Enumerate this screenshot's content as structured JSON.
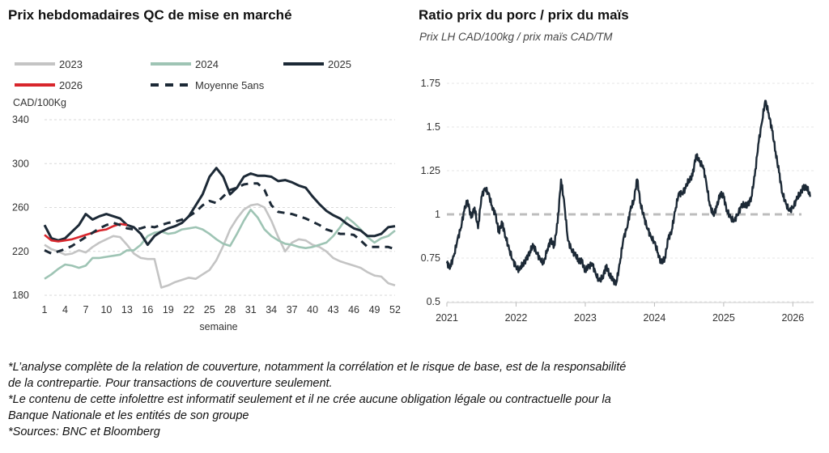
{
  "left": {
    "title": "Prix hebdomadaires QC de mise en marché"
  },
  "right": {
    "title": "Ratio prix du porc / prix du maïs",
    "subtitle": "Prix LH CAD/100kg / prix maïs CAD/TM"
  },
  "footer": [
    "*L’analyse complète de la relation de couverture, notamment la corrélation et le risque de base, est de la responsabilité",
    "de la contrepartie. Pour transactions de couverture seulement.",
    "*Le contenu de cette infolettre est informatif seulement et il ne crée aucune obligation légale ou contractuelle pour la",
    "Banque Nationale et les entités de son groupe",
    "*Sources: BNC et Bloomberg"
  ],
  "chart_data": [
    {
      "type": "line",
      "ylabel": "CAD/100Kg",
      "xlabel": "semaine",
      "ylim": [
        180,
        340
      ],
      "xlim": [
        1,
        52
      ],
      "yticks": [
        180,
        220,
        260,
        300,
        340
      ],
      "xticks": [
        1,
        4,
        7,
        10,
        13,
        16,
        19,
        22,
        25,
        28,
        31,
        34,
        37,
        40,
        43,
        46,
        49,
        52
      ],
      "grid": "horizontal dashed",
      "legend_position": "top",
      "series": [
        {
          "name": "2023",
          "color": "#c4c4c4",
          "dash": "solid",
          "x": [
            1,
            2,
            3,
            4,
            5,
            6,
            7,
            8,
            9,
            10,
            11,
            12,
            13,
            14,
            15,
            16,
            17,
            18,
            19,
            20,
            21,
            22,
            23,
            24,
            25,
            26,
            27,
            28,
            29,
            30,
            31,
            32,
            33,
            34,
            35,
            36,
            37,
            38,
            39,
            40,
            41,
            42,
            43,
            44,
            45,
            46,
            47,
            48,
            49,
            50,
            51,
            52
          ],
          "values": [
            226,
            222,
            220,
            217,
            218,
            221,
            219,
            224,
            228,
            231,
            234,
            233,
            226,
            218,
            214,
            213,
            213,
            187,
            189,
            192,
            194,
            196,
            195,
            199,
            203,
            212,
            225,
            240,
            250,
            258,
            262,
            263,
            260,
            248,
            233,
            220,
            228,
            231,
            230,
            226,
            224,
            220,
            214,
            211,
            209,
            207,
            205,
            201,
            198,
            197,
            191,
            189
          ]
        },
        {
          "name": "2024",
          "color": "#9ec4b4",
          "dash": "solid",
          "x": [
            1,
            2,
            3,
            4,
            5,
            6,
            7,
            8,
            9,
            10,
            11,
            12,
            13,
            14,
            15,
            16,
            17,
            18,
            19,
            20,
            21,
            22,
            23,
            24,
            25,
            26,
            27,
            28,
            29,
            30,
            31,
            32,
            33,
            34,
            35,
            36,
            37,
            38,
            39,
            40,
            41,
            42,
            43,
            44,
            45,
            46,
            47,
            48,
            49,
            50,
            51,
            52
          ],
          "values": [
            195,
            199,
            204,
            208,
            207,
            205,
            207,
            214,
            214,
            215,
            216,
            217,
            221,
            221,
            226,
            234,
            237,
            238,
            236,
            237,
            240,
            241,
            242,
            240,
            236,
            231,
            227,
            225,
            236,
            248,
            258,
            251,
            240,
            234,
            230,
            227,
            226,
            224,
            223,
            224,
            226,
            228,
            234,
            242,
            251,
            246,
            240,
            233,
            228,
            232,
            234,
            239
          ]
        },
        {
          "name": "2025",
          "color": "#1c2936",
          "dash": "solid",
          "x": [
            1,
            2,
            3,
            4,
            5,
            6,
            7,
            8,
            9,
            10,
            11,
            12,
            13,
            14,
            15,
            16,
            17,
            18,
            19,
            20,
            21,
            22,
            23,
            24,
            25,
            26,
            27,
            28,
            29,
            30,
            31,
            32,
            33,
            34,
            35,
            36,
            37,
            38,
            39,
            40,
            41,
            42,
            43,
            44,
            45,
            46,
            47,
            48,
            49,
            50,
            51,
            52
          ],
          "values": [
            244,
            232,
            230,
            232,
            238,
            244,
            254,
            249,
            252,
            254,
            252,
            250,
            244,
            242,
            236,
            226,
            234,
            238,
            241,
            243,
            246,
            252,
            262,
            272,
            288,
            296,
            288,
            272,
            278,
            288,
            291,
            289,
            289,
            288,
            284,
            285,
            283,
            280,
            278,
            270,
            263,
            257,
            253,
            250,
            245,
            241,
            239,
            234,
            234,
            236,
            242,
            243
          ]
        },
        {
          "name": "2026",
          "color": "#d8262c",
          "dash": "solid",
          "x": [
            1,
            2,
            3,
            4,
            5,
            6,
            7,
            8,
            9,
            10,
            11,
            12,
            13
          ],
          "values": [
            235,
            230,
            229,
            230,
            231,
            233,
            235,
            237,
            239,
            240,
            243,
            245,
            244
          ]
        },
        {
          "name": "Moyenne 5ans",
          "color": "#1c2936",
          "dash": "dashed",
          "x": [
            1,
            2,
            3,
            4,
            5,
            6,
            7,
            8,
            9,
            10,
            11,
            12,
            13,
            14,
            15,
            16,
            17,
            18,
            19,
            20,
            21,
            22,
            23,
            24,
            25,
            26,
            27,
            28,
            29,
            30,
            31,
            32,
            33,
            34,
            35,
            36,
            37,
            38,
            39,
            40,
            41,
            42,
            43,
            44,
            45,
            46,
            47,
            48,
            49,
            50,
            51,
            52
          ],
          "values": [
            221,
            218,
            220,
            222,
            225,
            229,
            233,
            237,
            241,
            244,
            246,
            244,
            241,
            240,
            241,
            243,
            242,
            244,
            246,
            247,
            249,
            252,
            256,
            262,
            266,
            264,
            270,
            276,
            278,
            281,
            282,
            282,
            276,
            262,
            256,
            255,
            254,
            252,
            250,
            247,
            244,
            240,
            238,
            236,
            236,
            235,
            230,
            224,
            224,
            224,
            224,
            222
          ]
        }
      ]
    },
    {
      "type": "line",
      "title": "Ratio prix du porc / prix du maïs",
      "subtitle": "Prix LH CAD/100kg / prix maïs CAD/TM",
      "ylim": [
        0.5,
        1.75
      ],
      "yticks": [
        0.5,
        0.75,
        1,
        1.25,
        1.5,
        1.75
      ],
      "ytick_labels": [
        "0.5",
        "0.75",
        "1",
        "1.25",
        "1.5",
        "1.75"
      ],
      "xlim": [
        2021.0,
        2026.3
      ],
      "xticks": [
        2021,
        2022,
        2023,
        2024,
        2025,
        2026
      ],
      "grid": "horizontal dashed",
      "reference_line": {
        "y": 1,
        "color": "#bdbdbd",
        "dash": "dashed"
      },
      "series": [
        {
          "color": "#1c2936",
          "x": [
            2021.0,
            2021.05,
            2021.1,
            2021.15,
            2021.2,
            2021.25,
            2021.3,
            2021.35,
            2021.4,
            2021.45,
            2021.5,
            2021.55,
            2021.6,
            2021.65,
            2021.7,
            2021.75,
            2021.8,
            2021.85,
            2021.9,
            2021.95,
            2022.0,
            2022.05,
            2022.1,
            2022.15,
            2022.2,
            2022.25,
            2022.3,
            2022.35,
            2022.4,
            2022.45,
            2022.5,
            2022.55,
            2022.6,
            2022.65,
            2022.7,
            2022.75,
            2022.8,
            2022.85,
            2022.9,
            2022.95,
            2023.0,
            2023.05,
            2023.1,
            2023.15,
            2023.2,
            2023.25,
            2023.3,
            2023.35,
            2023.4,
            2023.45,
            2023.5,
            2023.55,
            2023.6,
            2023.65,
            2023.7,
            2023.75,
            2023.8,
            2023.85,
            2023.9,
            2023.95,
            2024.0,
            2024.05,
            2024.1,
            2024.15,
            2024.2,
            2024.25,
            2024.3,
            2024.35,
            2024.4,
            2024.45,
            2024.5,
            2024.55,
            2024.6,
            2024.65,
            2024.7,
            2024.75,
            2024.8,
            2024.85,
            2024.9,
            2024.95,
            2025.0,
            2025.05,
            2025.1,
            2025.15,
            2025.2,
            2025.25,
            2025.3,
            2025.35,
            2025.4,
            2025.45,
            2025.5,
            2025.55,
            2025.6,
            2025.65,
            2025.7,
            2025.75,
            2025.8,
            2025.85,
            2025.9,
            2025.95,
            2026.0,
            2026.05,
            2026.1,
            2026.15,
            2026.2,
            2026.25
          ],
          "values": [
            0.72,
            0.7,
            0.76,
            0.85,
            0.92,
            1.02,
            1.08,
            0.98,
            1.04,
            0.92,
            1.1,
            1.15,
            1.12,
            1.05,
            1.0,
            0.9,
            0.95,
            0.87,
            0.8,
            0.74,
            0.7,
            0.68,
            0.72,
            0.74,
            0.79,
            0.82,
            0.78,
            0.74,
            0.72,
            0.8,
            0.85,
            0.82,
            0.95,
            1.2,
            1.05,
            0.85,
            0.8,
            0.77,
            0.74,
            0.73,
            0.68,
            0.7,
            0.72,
            0.66,
            0.62,
            0.64,
            0.7,
            0.66,
            0.62,
            0.61,
            0.72,
            0.86,
            0.92,
            1.02,
            1.08,
            1.2,
            1.06,
            0.98,
            0.92,
            0.87,
            0.84,
            0.78,
            0.72,
            0.75,
            0.86,
            0.91,
            1.02,
            1.12,
            1.12,
            1.15,
            1.2,
            1.22,
            1.34,
            1.3,
            1.28,
            1.18,
            1.05,
            1.0,
            1.04,
            1.12,
            1.1,
            1.02,
            0.98,
            0.96,
            1.0,
            1.04,
            1.06,
            1.05,
            1.1,
            1.22,
            1.4,
            1.52,
            1.65,
            1.58,
            1.48,
            1.36,
            1.24,
            1.12,
            1.06,
            1.02,
            1.04,
            1.08,
            1.12,
            1.15,
            1.16,
            1.1
          ]
        }
      ]
    }
  ]
}
